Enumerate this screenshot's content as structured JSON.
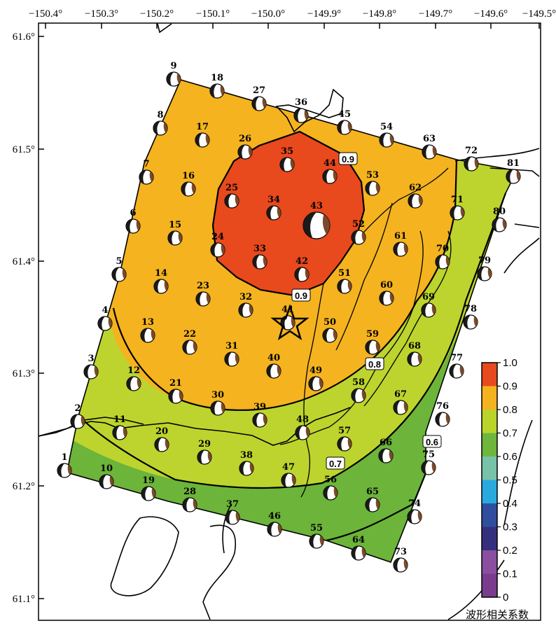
{
  "map": {
    "longitude_labels": [
      "−150.4°",
      "−150.3°",
      "−150.2°",
      "−150.1°",
      "−150.0°",
      "−149.9°",
      "−149.8°",
      "−149.7°",
      "−149.6°",
      "−149.5°"
    ],
    "latitude_labels": [
      "61.6°",
      "61.5°",
      "61.4°",
      "61.3°",
      "61.2°",
      "61.1°"
    ],
    "contour_labels": [
      "0.9",
      "0.9",
      "0.8",
      "0.7",
      "0.6"
    ],
    "epicenter_icon": "star-icon",
    "stations": [
      "1",
      "2",
      "3",
      "4",
      "5",
      "6",
      "7",
      "8",
      "9",
      "10",
      "11",
      "12",
      "13",
      "14",
      "15",
      "16",
      "17",
      "18",
      "19",
      "20",
      "21",
      "22",
      "23",
      "24",
      "25",
      "26",
      "27",
      "28",
      "29",
      "30",
      "31",
      "32",
      "33",
      "34",
      "35",
      "36",
      "37",
      "38",
      "39",
      "40",
      "41",
      "42",
      "43",
      "44",
      "45",
      "46",
      "47",
      "48",
      "49",
      "50",
      "51",
      "52",
      "53",
      "54",
      "55",
      "56",
      "57",
      "58",
      "59",
      "60",
      "61",
      "62",
      "63",
      "64",
      "65",
      "66",
      "67",
      "68",
      "69",
      "70",
      "71",
      "72",
      "73",
      "74",
      "75",
      "76",
      "77",
      "78",
      "79",
      "80",
      "81"
    ]
  },
  "colorbar": {
    "title": "波形相关系数",
    "tick_labels": [
      "1.0",
      "0.9",
      "0.8",
      "0.7",
      "0.6",
      "0.5",
      "0.4",
      "0.3",
      "0.2",
      "0.1",
      "0"
    ],
    "colors": [
      "#e84a1f",
      "#f4b21f",
      "#bad42b",
      "#6fb63c",
      "#78c2a8",
      "#29aadf",
      "#2f4f9e",
      "#35307d",
      "#8a4f9e",
      "#7a3c8c"
    ]
  }
}
